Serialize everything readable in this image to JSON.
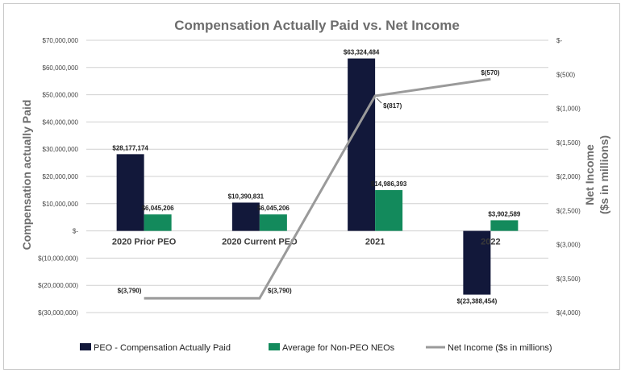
{
  "chart_data": {
    "type": "bar+line",
    "title": "Compensation Actually Paid vs. Net Income",
    "ylabel": "Compensation actually Paid",
    "y2label_line1": "Net Income",
    "y2label_line2": "($s in millions)",
    "ylim": [
      -30000000,
      70000000
    ],
    "y2lim": [
      -4000,
      0
    ],
    "yticks": [
      {
        "value": 70000000,
        "label": "$70,000,000"
      },
      {
        "value": 60000000,
        "label": "$60,000,000"
      },
      {
        "value": 50000000,
        "label": "$50,000,000"
      },
      {
        "value": 40000000,
        "label": "$40,000,000"
      },
      {
        "value": 30000000,
        "label": "$30,000,000"
      },
      {
        "value": 20000000,
        "label": "$20,000,000"
      },
      {
        "value": 10000000,
        "label": "$10,000,000"
      },
      {
        "value": 0,
        "label": "$-"
      },
      {
        "value": -10000000,
        "label": "$(10,000,000)"
      },
      {
        "value": -20000000,
        "label": "$(20,000,000)"
      },
      {
        "value": -30000000,
        "label": "$(30,000,000)"
      }
    ],
    "y2ticks": [
      {
        "value": 0,
        "label": "$-"
      },
      {
        "value": -500,
        "label": "$(500)"
      },
      {
        "value": -1000,
        "label": "$(1,000)"
      },
      {
        "value": -1500,
        "label": "$(1,500)"
      },
      {
        "value": -2000,
        "label": "$(2,000)"
      },
      {
        "value": -2500,
        "label": "$(2,500)"
      },
      {
        "value": -3000,
        "label": "$(3,000)"
      },
      {
        "value": -3500,
        "label": "$(3,500)"
      },
      {
        "value": -4000,
        "label": "$(4,000)"
      }
    ],
    "categories": [
      "2020 Prior PEO",
      "2020 Current PEO",
      "2021",
      "2022"
    ],
    "series": [
      {
        "name": "PEO - Compensation Actually Paid",
        "kind": "bar",
        "color": "#12183a",
        "values": [
          28177174,
          10390831,
          63324484,
          -23388454
        ],
        "labels": [
          "$28,177,174",
          "$10,390,831",
          "$63,324,484",
          "$(23,388,454)"
        ]
      },
      {
        "name": "Average for Non-PEO NEOs",
        "kind": "bar",
        "color": "#138a5c",
        "values": [
          6045206,
          6045206,
          14986393,
          3902589
        ],
        "labels": [
          "$6,045,206",
          "$6,045,206",
          "$14,986,393",
          "$3,902,589"
        ]
      },
      {
        "name": "Net Income ($s in millions)",
        "kind": "line",
        "axis": "right",
        "color": "#9a9a9a",
        "values": [
          -3790,
          -3790,
          -817,
          -570
        ],
        "labels": [
          "$(3,790)",
          "$(3,790)",
          "$(817)",
          "$(570)"
        ]
      }
    ]
  }
}
